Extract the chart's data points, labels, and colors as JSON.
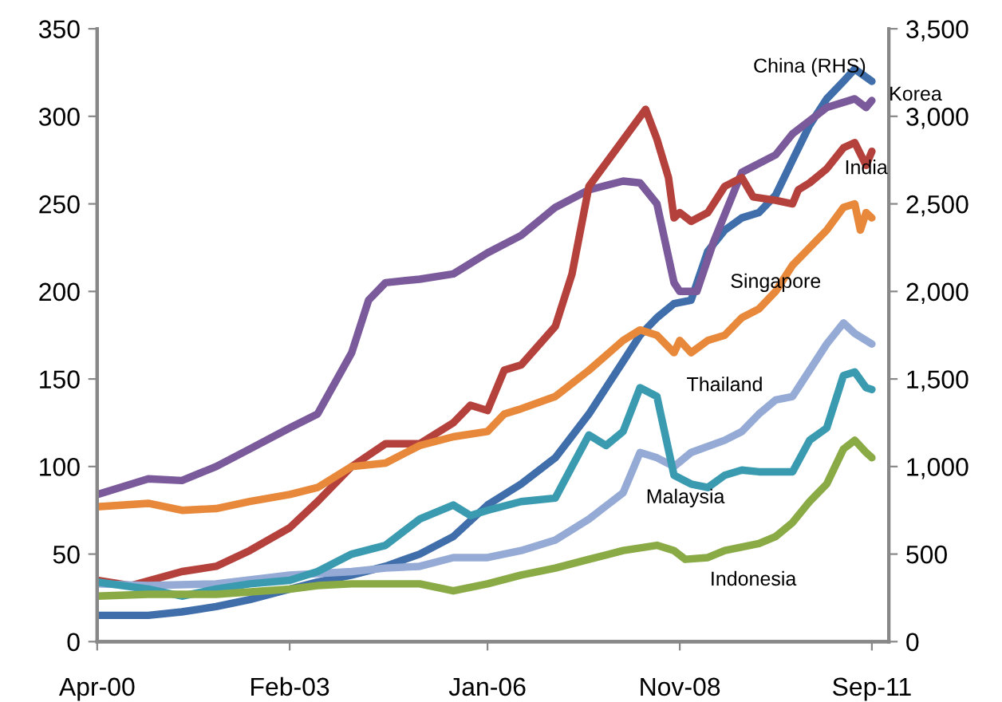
{
  "chart_data": {
    "type": "line",
    "xlim": [
      "2000-04",
      "2011-12"
    ],
    "xticks": [
      {
        "value": "2000-04",
        "label": "Apr-00"
      },
      {
        "value": "2003-02",
        "label": "Feb-03"
      },
      {
        "value": "2006-01",
        "label": "Jan-06"
      },
      {
        "value": "2008-11",
        "label": "Nov-08"
      },
      {
        "value": "2011-09",
        "label": "Sep-11"
      }
    ],
    "ylim": [
      0,
      350
    ],
    "yticks": [
      0,
      50,
      100,
      150,
      200,
      250,
      300,
      350
    ],
    "y2lim": [
      0,
      3500
    ],
    "y2ticks": [
      {
        "value": 0,
        "label": "0"
      },
      {
        "value": 500,
        "label": "500"
      },
      {
        "value": 1000,
        "label": "1,000"
      },
      {
        "value": 1500,
        "label": "1,500"
      },
      {
        "value": 2000,
        "label": "2,000"
      },
      {
        "value": 2500,
        "label": "2,500"
      },
      {
        "value": 3000,
        "label": "3,000"
      },
      {
        "value": 3500,
        "label": "3,500"
      }
    ],
    "grid": false,
    "legend": false,
    "marker": "none",
    "line_style": "solid",
    "series": [
      {
        "name": "Korea",
        "color": "#7a5a9a",
        "x": [
          "2000-04",
          "2001-01",
          "2001-07",
          "2002-01",
          "2002-07",
          "2003-02",
          "2003-07",
          "2004-01",
          "2004-04",
          "2004-07",
          "2005-01",
          "2005-07",
          "2006-01",
          "2006-07",
          "2007-01",
          "2007-07",
          "2008-01",
          "2008-04",
          "2008-07",
          "2008-10",
          "2008-11",
          "2009-02",
          "2009-05",
          "2009-10",
          "2010-04",
          "2010-07",
          "2011-01",
          "2011-06",
          "2011-08",
          "2011-09"
        ],
        "values": [
          84,
          93,
          92,
          100,
          110,
          122,
          130,
          165,
          195,
          205,
          207,
          210,
          222,
          232,
          248,
          258,
          263,
          262,
          250,
          205,
          200,
          200,
          228,
          268,
          278,
          290,
          305,
          310,
          305,
          309
        ]
      },
      {
        "name": "India",
        "color": "#b5413c",
        "x": [
          "2000-04",
          "2000-10",
          "2001-07",
          "2002-01",
          "2002-07",
          "2003-02",
          "2003-07",
          "2004-01",
          "2004-07",
          "2005-01",
          "2005-07",
          "2005-10",
          "2006-01",
          "2006-04",
          "2006-07",
          "2007-01",
          "2007-04",
          "2007-07",
          "2008-05",
          "2008-07",
          "2008-09",
          "2008-10",
          "2008-11",
          "2009-01",
          "2009-04",
          "2009-07",
          "2009-10",
          "2009-12",
          "2010-04",
          "2010-07",
          "2010-08",
          "2010-10",
          "2011-01",
          "2011-04",
          "2011-06",
          "2011-08",
          "2011-09"
        ],
        "values": [
          35,
          32,
          40,
          43,
          52,
          65,
          80,
          100,
          113,
          113,
          125,
          135,
          132,
          155,
          158,
          180,
          210,
          260,
          304,
          287,
          265,
          242,
          245,
          240,
          245,
          260,
          265,
          254,
          252,
          250,
          258,
          262,
          270,
          282,
          285,
          272,
          280
        ]
      },
      {
        "name": "Singapore",
        "color": "#e8883a",
        "x": [
          "2000-04",
          "2001-01",
          "2001-07",
          "2002-01",
          "2002-07",
          "2003-02",
          "2003-07",
          "2004-01",
          "2004-07",
          "2005-01",
          "2005-07",
          "2006-01",
          "2006-04",
          "2006-07",
          "2007-01",
          "2007-07",
          "2008-01",
          "2008-04",
          "2008-07",
          "2008-10",
          "2008-11",
          "2009-01",
          "2009-04",
          "2009-07",
          "2009-10",
          "2010-01",
          "2010-04",
          "2010-07",
          "2010-10",
          "2011-01",
          "2011-04",
          "2011-06",
          "2011-07",
          "2011-08",
          "2011-09"
        ],
        "values": [
          77,
          79,
          75,
          76,
          80,
          84,
          88,
          100,
          102,
          112,
          117,
          120,
          130,
          133,
          140,
          155,
          172,
          178,
          175,
          165,
          172,
          165,
          172,
          175,
          185,
          190,
          200,
          215,
          225,
          235,
          248,
          250,
          235,
          245,
          242
        ]
      },
      {
        "name": "China (RHS)",
        "color": "#3f6eaa",
        "axis": "y2",
        "x": [
          "2000-04",
          "2001-01",
          "2001-07",
          "2002-01",
          "2002-07",
          "2003-02",
          "2003-07",
          "2004-01",
          "2004-07",
          "2005-01",
          "2005-07",
          "2006-01",
          "2006-07",
          "2007-01",
          "2007-07",
          "2008-01",
          "2008-04",
          "2008-07",
          "2008-10",
          "2009-01",
          "2009-04",
          "2009-07",
          "2009-10",
          "2010-01",
          "2010-04",
          "2010-07",
          "2010-10",
          "2011-01",
          "2011-04",
          "2011-06",
          "2011-09"
        ],
        "values": [
          150,
          150,
          170,
          200,
          240,
          300,
          340,
          380,
          430,
          500,
          600,
          780,
          900,
          1050,
          1300,
          1600,
          1750,
          1850,
          1930,
          1950,
          2230,
          2350,
          2420,
          2450,
          2550,
          2750,
          2950,
          3100,
          3200,
          3270,
          3200
        ]
      },
      {
        "name": "Thailand",
        "color": "#95abd6",
        "x": [
          "2000-04",
          "2001-01",
          "2002-01",
          "2003-02",
          "2004-01",
          "2004-07",
          "2005-01",
          "2005-07",
          "2006-01",
          "2006-07",
          "2007-01",
          "2007-07",
          "2008-01",
          "2008-04",
          "2008-07",
          "2008-10",
          "2009-01",
          "2009-07",
          "2009-10",
          "2010-01",
          "2010-04",
          "2010-07",
          "2010-10",
          "2011-01",
          "2011-04",
          "2011-06",
          "2011-09"
        ],
        "values": [
          33,
          32,
          33,
          38,
          40,
          42,
          43,
          48,
          48,
          52,
          58,
          70,
          85,
          108,
          105,
          100,
          108,
          115,
          120,
          130,
          138,
          140,
          155,
          170,
          182,
          176,
          170
        ]
      },
      {
        "name": "Malaysia",
        "color": "#3a9bb0",
        "x": [
          "2000-04",
          "2001-01",
          "2001-07",
          "2002-01",
          "2002-07",
          "2003-02",
          "2003-07",
          "2004-01",
          "2004-07",
          "2005-01",
          "2005-07",
          "2005-10",
          "2006-01",
          "2006-07",
          "2007-01",
          "2007-04",
          "2007-07",
          "2007-10",
          "2008-01",
          "2008-04",
          "2008-07",
          "2008-10",
          "2009-01",
          "2009-04",
          "2009-07",
          "2009-10",
          "2010-01",
          "2010-07",
          "2010-10",
          "2011-01",
          "2011-04",
          "2011-06",
          "2011-08",
          "2011-09"
        ],
        "values": [
          34,
          30,
          26,
          30,
          33,
          35,
          40,
          50,
          55,
          70,
          78,
          72,
          75,
          80,
          82,
          100,
          118,
          112,
          120,
          145,
          140,
          95,
          90,
          88,
          95,
          98,
          97,
          97,
          115,
          122,
          152,
          154,
          145,
          144
        ]
      },
      {
        "name": "Indonesia",
        "color": "#8aaa45",
        "x": [
          "2000-04",
          "2001-01",
          "2002-01",
          "2003-02",
          "2003-07",
          "2004-01",
          "2005-01",
          "2005-07",
          "2006-01",
          "2006-07",
          "2007-01",
          "2007-07",
          "2008-01",
          "2008-07",
          "2008-10",
          "2008-12",
          "2009-04",
          "2009-07",
          "2010-01",
          "2010-04",
          "2010-07",
          "2010-10",
          "2011-01",
          "2011-04",
          "2011-06",
          "2011-08",
          "2011-09"
        ],
        "values": [
          26,
          27,
          27,
          30,
          32,
          33,
          33,
          29,
          33,
          38,
          42,
          47,
          52,
          55,
          52,
          47,
          48,
          52,
          56,
          60,
          68,
          80,
          90,
          110,
          115,
          108,
          105
        ]
      }
    ]
  }
}
